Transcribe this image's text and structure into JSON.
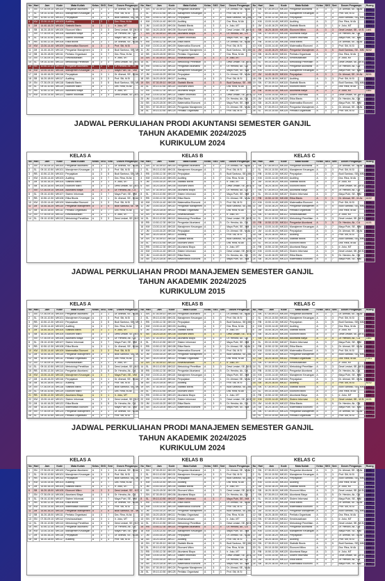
{
  "sections": [
    {
      "title_lines": [
        "JADWAL PERKULIAHAN PRODI AKUNTANSI SEMESTER GANJIL",
        "TAHUN AKADEMIK 2024/2025",
        "KURIKULUM 2024"
      ],
      "row_top": true,
      "tables": [
        {
          "label": "KELAS A",
          "rows": 22,
          "highlights": {
            "3": "hl-dark",
            "4": "hl-red",
            "9": "hl-red",
            "14": "hl-dark",
            "15": "hl-red"
          }
        },
        {
          "label": "KELAS B",
          "rows": 26,
          "highlights": {
            "6": "hl-red",
            "12": "hl-red",
            "18": "hl-red"
          }
        },
        {
          "label": "KELAS C",
          "rows": 26,
          "highlights": {
            "5": "hl-red",
            "10": "hl-red",
            "16": "hl-red",
            "20": "hl-red"
          }
        }
      ],
      "tables_bottom": [
        {
          "label": "KELAS A",
          "rows": 14,
          "highlights": {
            "6": "hl-red",
            "10": "hl-red"
          }
        },
        {
          "label": "KELAS B",
          "rows": 24,
          "highlights": {}
        },
        {
          "label": "KELAS C",
          "rows": 24,
          "highlights": {
            "8": "hl-red",
            "14": "hl-red"
          }
        }
      ]
    },
    {
      "title_lines": [
        "JADWAL PERKULIAHAN PRODI MANAJEMEN SEMESTER GANJIL",
        "TAHUN AKADEMIK 2024/2025",
        "KURIKULUM 2015"
      ],
      "tables": [
        {
          "label": "KELAS A",
          "rows": 26,
          "highlights": {
            "4": "hl-yellow",
            "9": "hl-yellow",
            "15": "hl-yellow",
            "20": "hl-yellow"
          }
        },
        {
          "label": "KELAS B",
          "rows": 24,
          "highlights": {
            "5": "hl-yellow",
            "12": "hl-yellow"
          }
        },
        {
          "label": "KELAS C",
          "rows": 26,
          "highlights": {
            "6": "hl-yellow",
            "11": "hl-yellow",
            "17": "hl-yellow",
            "21": "hl-yellow"
          }
        }
      ]
    },
    {
      "title_lines": [
        "JADWAL PERKULIAHAN PRODI MANAJEMEN SEMESTER GANJIL",
        "TAHUN AKADEMIK 2024/2025",
        "KURIKULUM 2024"
      ],
      "tables": [
        {
          "label": "KELAS A",
          "rows": 18,
          "highlights": {
            "5": "hl-red",
            "10": "hl-red"
          }
        },
        {
          "label": "KELAS B",
          "rows": 26,
          "highlights": {
            "7": "hl-red",
            "14": "hl-red"
          }
        },
        {
          "label": "KELAS C",
          "rows": 24,
          "highlights": {}
        }
      ]
    }
  ],
  "columns": [
    "No",
    "Hari",
    "Jam",
    "Kode",
    "Mata Kuliah",
    "Kelas",
    "SKS",
    "Smt",
    "Dosen Pengampu",
    "Ruang"
  ],
  "colors": {
    "bg_grad_start": "#1a2a8a",
    "bg_grad_end": "#7a1f4a",
    "page_bg": "#ffffff",
    "header_bg": "#e8e8e8",
    "border": "#aaaaaa",
    "text": "#222222"
  },
  "sample_cells": {
    "days": [
      "SN",
      "SL",
      "RB",
      "KM",
      "JM",
      "SB"
    ],
    "subjects": [
      "Pengantar Akuntansi",
      "Manajemen Keuangan",
      "Perpajakan",
      "Auditing",
      "Statistik Bisnis",
      "Ekonomi Mikro",
      "Akuntansi Biaya",
      "Sistem Informasi",
      "Etika Bisnis",
      "Matematika Ekonomi",
      "Pengantar Manajemen",
      "Perilaku Organisasi",
      "Kewirausahaan",
      "Metodologi Penelitian"
    ],
    "lecturers": [
      "Dr. Ahmad, SE., M.Ak",
      "Prof. Siti, M.Si",
      "Budi Santoso, SE., MM",
      "Dra. Rina, M.Ak",
      "Ir. Joko, MT",
      "Dewi Lestari, SE., M.Si",
      "Dr. Hendra, Ak., CA",
      "Maya Putri, SE., MM"
    ],
    "times": [
      "07.30-09.10",
      "09.10-10.50",
      "10.50-12.30",
      "13.00-14.40",
      "14.40-16.20",
      "16.20-18.00"
    ],
    "rooms": [
      "A101",
      "A102",
      "B201",
      "B202",
      "C301",
      "Lab1",
      "Lab2"
    ]
  }
}
